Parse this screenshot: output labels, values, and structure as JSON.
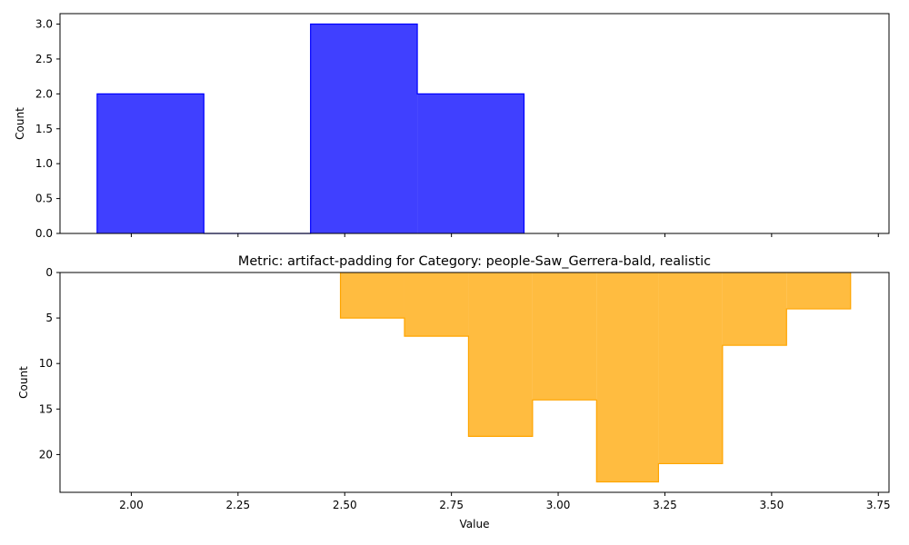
{
  "chart_data": [
    {
      "type": "histogram",
      "title": "",
      "xlabel": "",
      "ylabel": "Count",
      "xlim": [
        1.833,
        3.775
      ],
      "ylim": [
        0,
        3.15
      ],
      "y_inverted": false,
      "grid": false,
      "color": "#0000ff",
      "bins": [
        {
          "x0": 1.92,
          "x1": 2.17,
          "count": 2
        },
        {
          "x0": 2.17,
          "x1": 2.42,
          "count": 0
        },
        {
          "x0": 2.42,
          "x1": 2.67,
          "count": 3
        },
        {
          "x0": 2.67,
          "x1": 2.92,
          "count": 2
        }
      ],
      "xticks": [
        2.0,
        2.25,
        2.5,
        2.75,
        3.0,
        3.25,
        3.5,
        3.75
      ],
      "xtick_labels_shown": false,
      "yticks": [
        0.0,
        0.5,
        1.0,
        1.5,
        2.0,
        2.5,
        3.0
      ],
      "ytick_labels": [
        "0.0",
        "0.5",
        "1.0",
        "1.5",
        "2.0",
        "2.5",
        "3.0"
      ]
    },
    {
      "type": "histogram",
      "title": "Metric: artifact-padding for Category: people-Saw_Gerrera-bald, realistic",
      "xlabel": "Value",
      "ylabel": "Count",
      "xlim": [
        1.833,
        3.775
      ],
      "ylim": [
        0,
        24.15
      ],
      "y_inverted": true,
      "grid": false,
      "color": "#ffa500",
      "bins": [
        {
          "x0": 2.49,
          "x1": 2.64,
          "count": 5
        },
        {
          "x0": 2.64,
          "x1": 2.79,
          "count": 7
        },
        {
          "x0": 2.79,
          "x1": 2.94,
          "count": 18
        },
        {
          "x0": 2.94,
          "x1": 3.09,
          "count": 14
        },
        {
          "x0": 3.09,
          "x1": 3.235,
          "count": 23
        },
        {
          "x0": 3.235,
          "x1": 3.385,
          "count": 21
        },
        {
          "x0": 3.385,
          "x1": 3.535,
          "count": 8
        },
        {
          "x0": 3.535,
          "x1": 3.685,
          "count": 4
        }
      ],
      "xticks": [
        2.0,
        2.25,
        2.5,
        2.75,
        3.0,
        3.25,
        3.5,
        3.75
      ],
      "xtick_labels": [
        "2.00",
        "2.25",
        "2.50",
        "2.75",
        "3.00",
        "3.25",
        "3.50",
        "3.75"
      ],
      "yticks": [
        0,
        5,
        10,
        15,
        20
      ],
      "ytick_labels": [
        "0",
        "5",
        "10",
        "15",
        "20"
      ]
    }
  ]
}
